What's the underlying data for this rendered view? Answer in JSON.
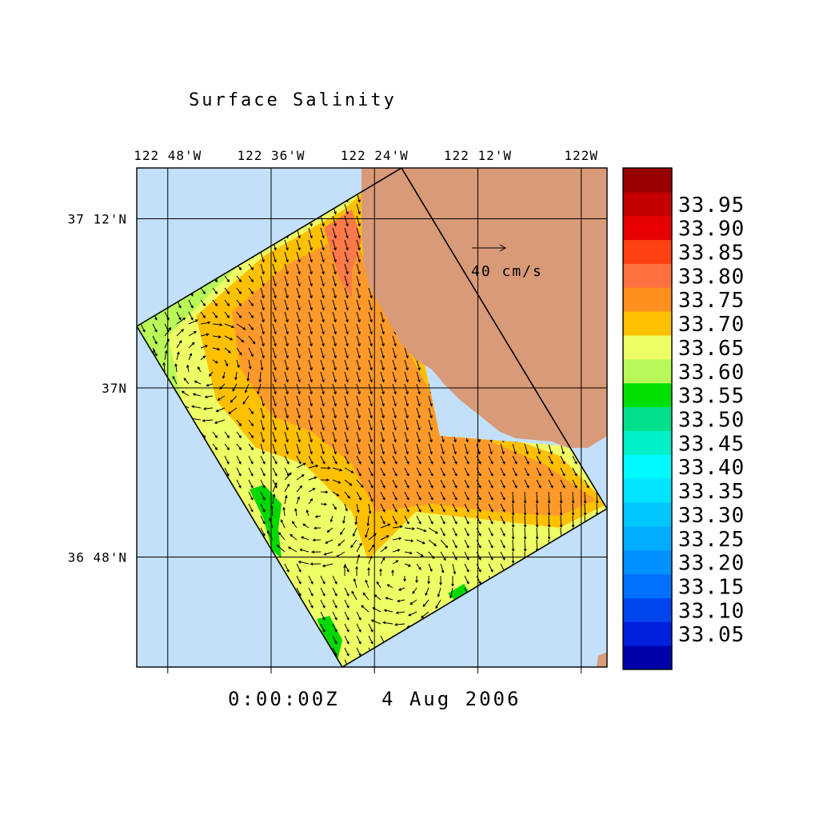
{
  "title": "Surface Salinity",
  "timestamp": "0:00:00Z   4 Aug 2006",
  "colors": {
    "ocean": "#c2e0fa",
    "land": "#d99a78",
    "arrow": "#000000"
  },
  "chart_data": {
    "type": "heatmap",
    "title": "Surface Salinity",
    "lon_range": [
      -122.86,
      -121.95
    ],
    "lat_range": [
      36.67,
      37.26
    ],
    "x_ticks": [
      {
        "label": "122 48'W",
        "lon": -122.8
      },
      {
        "label": "122 36'W",
        "lon": -122.6
      },
      {
        "label": "122 24'W",
        "lon": -122.4
      },
      {
        "label": "122 12'W",
        "lon": -122.2
      },
      {
        "label": "122W",
        "lon": -122.0
      }
    ],
    "y_ticks": [
      {
        "label": "37 12'N",
        "lat": 37.2
      },
      {
        "label": "37N",
        "lat": 37.0
      },
      {
        "label": "36 48'N",
        "lat": 36.8
      }
    ],
    "grid": true,
    "vector_scale_label": "40 cm/s",
    "colorbar": {
      "placement": "right",
      "levels": [
        {
          "value": "",
          "color": "#0000aa"
        },
        {
          "value": "33.05",
          "color": "#0020dd"
        },
        {
          "value": "33.10",
          "color": "#0045ee"
        },
        {
          "value": "33.15",
          "color": "#0070ff"
        },
        {
          "value": "33.20",
          "color": "#0090ff"
        },
        {
          "value": "33.25",
          "color": "#00acff"
        },
        {
          "value": "33.30",
          "color": "#00c6ff"
        },
        {
          "value": "33.35",
          "color": "#00e4ff"
        },
        {
          "value": "33.40",
          "color": "#00f8ff"
        },
        {
          "value": "33.45",
          "color": "#00f0c8"
        },
        {
          "value": "33.50",
          "color": "#00e08a"
        },
        {
          "value": "33.55",
          "color": "#00e000"
        },
        {
          "value": "33.60",
          "color": "#b8f858"
        },
        {
          "value": "33.65",
          "color": "#eeff66"
        },
        {
          "value": "33.70",
          "color": "#ffc000"
        },
        {
          "value": "33.75",
          "color": "#ff9020"
        },
        {
          "value": "33.80",
          "color": "#ff7040"
        },
        {
          "value": "33.85",
          "color": "#ff4010"
        },
        {
          "value": "33.90",
          "color": "#e60000"
        },
        {
          "value": "33.95",
          "color": "#c40000"
        },
        {
          "value": "",
          "color": "#960000"
        }
      ]
    },
    "regions": [
      {
        "level": "33.60",
        "name": "outer-yellow-green"
      },
      {
        "level": "33.65",
        "name": "yellow"
      },
      {
        "level": "33.70",
        "name": "orange"
      },
      {
        "level": "33.75",
        "name": "light-orange-red"
      },
      {
        "level": "33.55",
        "name": "green"
      }
    ]
  }
}
